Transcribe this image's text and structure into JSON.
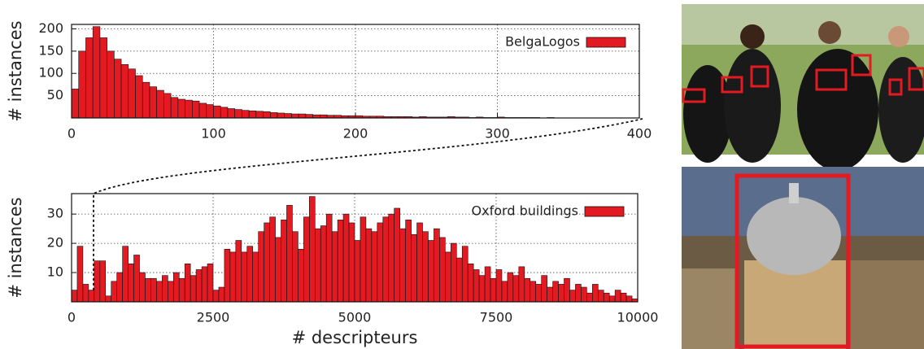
{
  "chart_data": [
    {
      "type": "histogram",
      "y_label": "# instances",
      "legend": "upper right",
      "grid": true,
      "series": [
        {
          "name": "BelgaLogos",
          "color": "#e31a22",
          "bins": [
            0,
            5,
            10,
            15,
            20,
            25,
            30,
            35,
            40,
            45,
            50,
            55,
            60,
            65,
            70,
            75,
            80,
            85,
            90,
            95,
            100,
            105,
            110,
            115,
            120,
            125,
            130,
            135,
            140,
            145,
            150,
            155,
            160,
            165,
            170,
            175,
            180,
            185,
            190,
            195,
            200,
            205,
            210,
            215,
            220,
            225,
            230,
            235,
            240,
            245,
            250,
            255,
            260,
            265,
            270,
            275,
            280,
            285,
            290,
            295,
            300,
            305,
            310,
            315,
            320,
            325,
            330,
            335,
            340,
            345,
            350,
            355,
            360,
            365,
            370,
            375,
            380,
            385,
            390,
            395,
            400
          ],
          "values": [
            65,
            150,
            180,
            205,
            180,
            150,
            132,
            120,
            110,
            95,
            80,
            70,
            62,
            55,
            46,
            42,
            40,
            38,
            33,
            30,
            27,
            24,
            21,
            19,
            17,
            16,
            15,
            14,
            12,
            11,
            10,
            9,
            9,
            8,
            7,
            7,
            6,
            6,
            5,
            5,
            5,
            4,
            4,
            4,
            3,
            3,
            3,
            3,
            2,
            3,
            2,
            2,
            2,
            3,
            2,
            2,
            1,
            2,
            1,
            1,
            2,
            1,
            1,
            1,
            1,
            1,
            0,
            1,
            0,
            0,
            0,
            0,
            0,
            0,
            0,
            0,
            0,
            0,
            0,
            0
          ]
        }
      ],
      "xlim": [
        0,
        400
      ],
      "xticks": [
        0,
        100,
        200,
        300,
        400
      ],
      "ylim": [
        0,
        210
      ],
      "yticks": [
        50,
        100,
        150,
        200
      ]
    },
    {
      "type": "histogram",
      "x_label": "# descripteurs",
      "y_label": "# instances",
      "legend": "upper right",
      "grid": true,
      "series": [
        {
          "name": "Oxford buildings",
          "color": "#e31a22",
          "bins": [
            0,
            100,
            200,
            300,
            400,
            500,
            600,
            700,
            800,
            900,
            1000,
            1100,
            1200,
            1300,
            1400,
            1500,
            1600,
            1700,
            1800,
            1900,
            2000,
            2100,
            2200,
            2300,
            2400,
            2500,
            2600,
            2700,
            2800,
            2900,
            3000,
            3100,
            3200,
            3300,
            3400,
            3500,
            3600,
            3700,
            3800,
            3900,
            4000,
            4100,
            4200,
            4300,
            4400,
            4500,
            4600,
            4700,
            4800,
            4900,
            5000,
            5100,
            5200,
            5300,
            5400,
            5500,
            5600,
            5700,
            5800,
            5900,
            6000,
            6100,
            6200,
            6300,
            6400,
            6500,
            6600,
            6700,
            6800,
            6900,
            7000,
            7100,
            7200,
            7300,
            7400,
            7500,
            7600,
            7700,
            7800,
            7900,
            8000,
            8100,
            8200,
            8300,
            8400,
            8500,
            8600,
            8700,
            8800,
            8900,
            9000,
            9100,
            9200,
            9300,
            9400,
            9500,
            9600,
            9700,
            9800,
            9900,
            10000
          ],
          "values": [
            4,
            19,
            6,
            4,
            14,
            14,
            2,
            7,
            10,
            19,
            13,
            16,
            10,
            8,
            8,
            7,
            9,
            7,
            10,
            8,
            13,
            9,
            11,
            12,
            13,
            4,
            5,
            18,
            17,
            21,
            17,
            19,
            17,
            24,
            27,
            29,
            22,
            28,
            33,
            24,
            18,
            29,
            36,
            25,
            26,
            30,
            24,
            28,
            30,
            27,
            21,
            29,
            25,
            24,
            27,
            29,
            30,
            32,
            25,
            28,
            23,
            27,
            24,
            21,
            25,
            22,
            17,
            20,
            15,
            19,
            13,
            11,
            9,
            12,
            8,
            11,
            7,
            10,
            9,
            12,
            8,
            7,
            6,
            9,
            5,
            7,
            6,
            8,
            4,
            6,
            5,
            3,
            6,
            4,
            3,
            2,
            4,
            3,
            2,
            1
          ]
        }
      ],
      "xlim": [
        0,
        10000
      ],
      "xticks": [
        0,
        2500,
        5000,
        7500,
        10000
      ],
      "ylim": [
        0,
        37
      ],
      "yticks": [
        10,
        20,
        30
      ]
    }
  ]
}
